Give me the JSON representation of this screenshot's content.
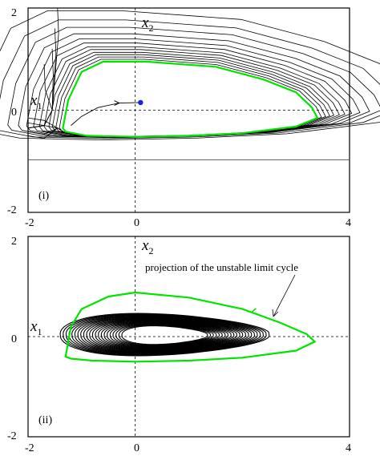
{
  "chart_data": [
    {
      "panel": "(i)",
      "type": "phase-portrait",
      "xlim": [
        -2,
        4
      ],
      "ylim": [
        -2,
        2
      ],
      "x_ticks": [
        "-2",
        "0",
        "4"
      ],
      "y_ticks": [
        "2",
        "0",
        "-2"
      ],
      "xlabel": "x",
      "xlabel_sub": "1",
      "ylabel": "x",
      "ylabel_sub": "2",
      "equilibrium": {
        "x": 0.1,
        "y": 0.15,
        "color": "#1a22dd"
      },
      "limit_cycle": {
        "color": "#00e400",
        "points": [
          [
            -1.35,
            -0.35
          ],
          [
            -1.25,
            0.2
          ],
          [
            -1.0,
            0.75
          ],
          [
            -0.6,
            0.95
          ],
          [
            0.2,
            0.95
          ],
          [
            1.5,
            0.85
          ],
          [
            2.4,
            0.6
          ],
          [
            3.0,
            0.35
          ],
          [
            3.3,
            0.05
          ],
          [
            3.4,
            -0.15
          ],
          [
            3.0,
            -0.32
          ],
          [
            2.0,
            -0.45
          ],
          [
            1.0,
            -0.5
          ],
          [
            0.0,
            -0.52
          ],
          [
            -0.9,
            -0.5
          ],
          [
            -1.3,
            -0.42
          ],
          [
            -1.35,
            -0.35
          ]
        ]
      },
      "trajectory_from_equilibrium": [
        [
          0.1,
          0.15
        ],
        [
          -0.3,
          0.14
        ],
        [
          -0.7,
          0.05
        ],
        [
          -1.0,
          -0.12
        ],
        [
          -1.2,
          -0.3
        ]
      ],
      "lower_boundary_y": -0.97,
      "outer_orbits": [
        {
          "k": 1.03,
          "dy": 0.02
        },
        {
          "k": 1.06,
          "dy": 0.04
        },
        {
          "k": 1.09,
          "dy": 0.06
        },
        {
          "k": 1.12,
          "dy": 0.08
        },
        {
          "k": 1.16,
          "dy": 0.1
        },
        {
          "k": 1.2,
          "dy": 0.12
        },
        {
          "k": 1.25,
          "dy": 0.15
        },
        {
          "k": 1.31,
          "dy": 0.18
        },
        {
          "k": 1.38,
          "dy": 0.22
        },
        {
          "k": 1.47,
          "dy": 0.27
        },
        {
          "k": 1.58,
          "dy": 0.32
        },
        {
          "k": 1.72,
          "dy": 0.38
        }
      ],
      "panel_label": "(i)"
    },
    {
      "panel": "(ii)",
      "type": "phase-portrait",
      "xlim": [
        -2,
        4
      ],
      "ylim": [
        -2,
        2
      ],
      "x_ticks": [
        "-2",
        "0",
        "4"
      ],
      "y_ticks": [
        "2",
        "0",
        "-2"
      ],
      "xlabel": "x",
      "xlabel_sub": "1",
      "ylabel": "x",
      "ylabel_sub": "2",
      "limit_cycle": {
        "color": "#00e400",
        "points": [
          [
            -1.3,
            -0.4
          ],
          [
            -1.2,
            0.2
          ],
          [
            -1.0,
            0.55
          ],
          [
            -0.5,
            0.8
          ],
          [
            0.0,
            0.88
          ],
          [
            1.0,
            0.78
          ],
          [
            2.0,
            0.55
          ],
          [
            2.7,
            0.28
          ],
          [
            3.2,
            0.05
          ],
          [
            3.35,
            -0.1
          ],
          [
            3.0,
            -0.28
          ],
          [
            2.0,
            -0.42
          ],
          [
            1.0,
            -0.48
          ],
          [
            0.0,
            -0.5
          ],
          [
            -0.8,
            -0.48
          ],
          [
            -1.2,
            -0.44
          ],
          [
            -1.3,
            -0.4
          ]
        ]
      },
      "inner_orbits": {
        "count": 22,
        "cx": 0.55,
        "cy": 0.02,
        "rx_min": 0.8,
        "rx_max": 1.95,
        "ry_min": 0.22,
        "ry_max": 0.5
      },
      "annotation": "projection of the unstable limit cycle",
      "panel_label": "(ii)"
    }
  ]
}
